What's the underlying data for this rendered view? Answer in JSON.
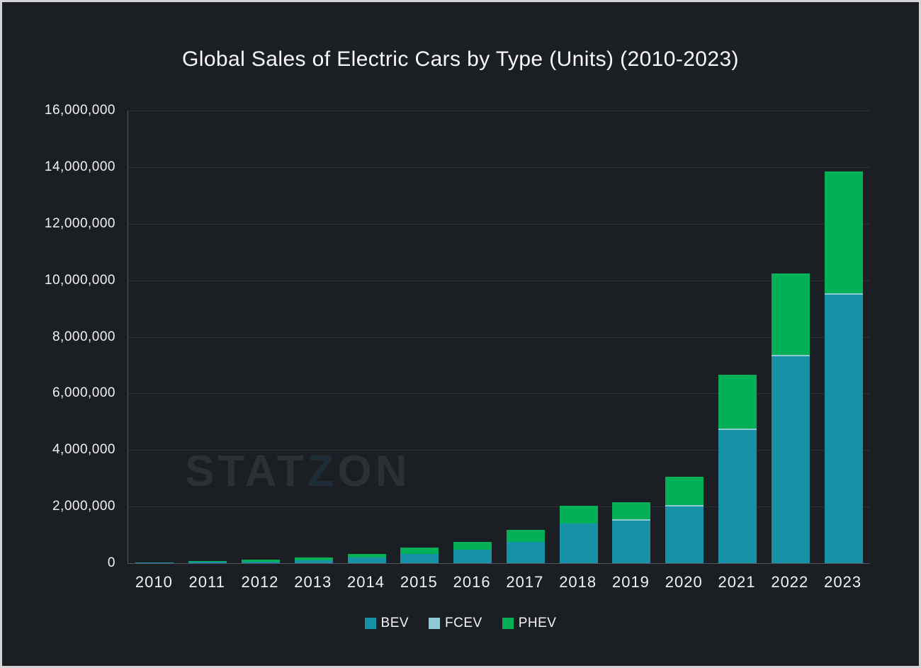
{
  "frame": {
    "background": "#1b1e22",
    "border_color": "#d5d5d5"
  },
  "chart_data": {
    "type": "bar",
    "stacked": true,
    "title": "Global Sales of Electric Cars by Type (Units) (2010-2023)",
    "categories": [
      "2010",
      "2011",
      "2012",
      "2013",
      "2014",
      "2015",
      "2016",
      "2017",
      "2018",
      "2019",
      "2020",
      "2021",
      "2022",
      "2023"
    ],
    "series": [
      {
        "name": "BEV",
        "color": "#1791a5",
        "values": [
          7400,
          39000,
          59000,
          110000,
          190000,
          330000,
          470000,
          750000,
          1400000,
          1500000,
          2000000,
          4700000,
          7300000,
          9500000
        ]
      },
      {
        "name": "FCEV",
        "color": "#8ec9d6",
        "values": [
          0,
          0,
          0,
          1000,
          1000,
          1000,
          2000,
          3000,
          6000,
          7500,
          9000,
          15500,
          15400,
          14500
        ]
      },
      {
        "name": "PHEV",
        "color": "#02b157",
        "values": [
          380,
          9000,
          60000,
          92000,
          130000,
          220000,
          280000,
          420000,
          640000,
          600000,
          1000000,
          1900000,
          2900000,
          4300000
        ]
      }
    ],
    "xlabel": "",
    "ylabel": "",
    "ylim": [
      0,
      16000000
    ],
    "y_ticks": [
      0,
      2000000,
      4000000,
      6000000,
      8000000,
      10000000,
      12000000,
      14000000,
      16000000
    ],
    "grid": "horizontal",
    "legend_position": "bottom",
    "watermark": {
      "text_parts": [
        "STAT",
        "Z",
        "ON"
      ]
    }
  },
  "style": {
    "gridline_color": "#2b2e32",
    "axis_color": "#54575b",
    "text_color": "#f2f2f2",
    "title_color": "#fafafa"
  }
}
